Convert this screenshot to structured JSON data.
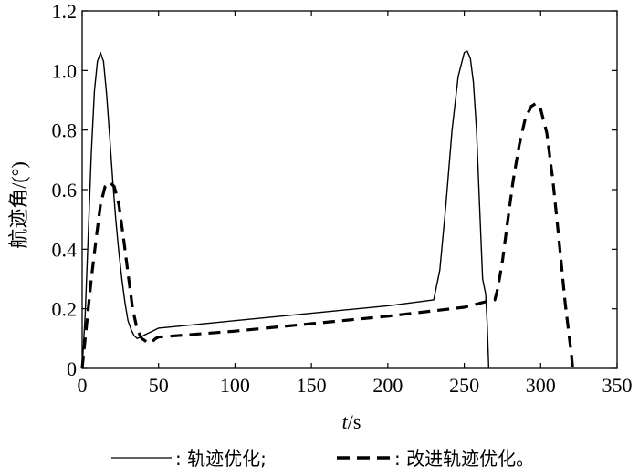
{
  "chart_data": {
    "type": "line",
    "xlabel_var": "t",
    "xlabel_unit": "/s",
    "ylabel": "航迹角/(°)",
    "xlim": [
      0,
      350
    ],
    "ylim": [
      0,
      1.2
    ],
    "x_ticks": [
      0,
      50,
      100,
      150,
      200,
      250,
      300,
      350
    ],
    "y_ticks": [
      0,
      0.2,
      0.4,
      0.6,
      0.8,
      1.0,
      1.2
    ],
    "y_tick_labels": [
      "0",
      "0.2",
      "0.4",
      "0.6",
      "0.8",
      "1.0",
      "1.2"
    ],
    "grid": false,
    "legend_position": "bottom",
    "legend": [
      ": 轨迹优化;",
      ": 改进轨迹优化。"
    ],
    "series": [
      {
        "style": "solid",
        "color": "#000000",
        "x": [
          0,
          2,
          4,
          6,
          8,
          10,
          12,
          14,
          16,
          18,
          20,
          22,
          24,
          26,
          28,
          30,
          32,
          34,
          36,
          38,
          40,
          42,
          44,
          46,
          48,
          50,
          60,
          100,
          150,
          200,
          230,
          234,
          238,
          242,
          246,
          250,
          252,
          254,
          256,
          258,
          260,
          262,
          264,
          265,
          266
        ],
        "y": [
          0,
          0.18,
          0.45,
          0.72,
          0.93,
          1.03,
          1.06,
          1.03,
          0.92,
          0.78,
          0.63,
          0.5,
          0.39,
          0.3,
          0.22,
          0.16,
          0.13,
          0.11,
          0.1,
          0.105,
          0.11,
          0.115,
          0.12,
          0.125,
          0.13,
          0.135,
          0.14,
          0.16,
          0.185,
          0.21,
          0.23,
          0.33,
          0.55,
          0.8,
          0.98,
          1.06,
          1.065,
          1.04,
          0.96,
          0.8,
          0.55,
          0.3,
          0.25,
          0.15,
          0
        ]
      },
      {
        "style": "dashed",
        "color": "#000000",
        "x": [
          0,
          3,
          6,
          9,
          12,
          15,
          18,
          21,
          24,
          27,
          30,
          33,
          36,
          39,
          42,
          45,
          48,
          50,
          100,
          150,
          200,
          250,
          265,
          270,
          272,
          275,
          278,
          282,
          286,
          290,
          294,
          297,
          300,
          304,
          308,
          312,
          316,
          320,
          321
        ],
        "y": [
          0,
          0.15,
          0.3,
          0.43,
          0.55,
          0.61,
          0.625,
          0.61,
          0.55,
          0.44,
          0.32,
          0.2,
          0.13,
          0.1,
          0.09,
          0.085,
          0.1,
          0.105,
          0.125,
          0.15,
          0.175,
          0.205,
          0.225,
          0.23,
          0.27,
          0.36,
          0.48,
          0.63,
          0.75,
          0.84,
          0.88,
          0.89,
          0.87,
          0.79,
          0.63,
          0.43,
          0.22,
          0.05,
          0
        ]
      }
    ]
  }
}
